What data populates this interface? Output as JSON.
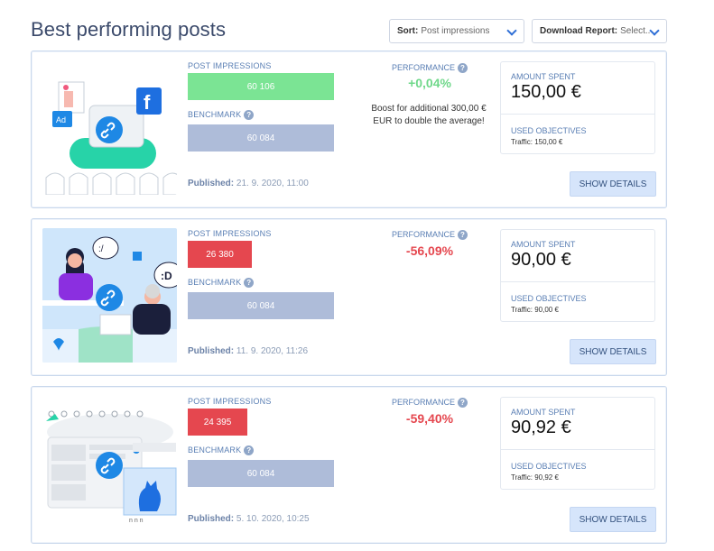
{
  "header": {
    "title": "Best performing posts",
    "sort": {
      "label": "Sort:",
      "value": "Post impressions"
    },
    "report": {
      "label": "Download Report:",
      "value": "Select..."
    }
  },
  "labels": {
    "post_impressions": "POST IMPRESSIONS",
    "benchmark": "BENCHMARK",
    "performance": "PERFORMANCE",
    "amount_spent": "AMOUNT SPENT",
    "used_objectives": "USED OBJECTIVES",
    "published": "Published:",
    "show_details": "SHOW DETAILS",
    "info": "?"
  },
  "colors": {
    "positive_bar": "#7be494",
    "negative_bar": "#e5474f",
    "benchmark_bar": "#aebcd9",
    "accent": "#2f6fd6"
  },
  "posts": [
    {
      "impressions": "60 106",
      "benchmark": "60 084",
      "published": "21. 9. 2020, 11:00",
      "performance": "+0,04%",
      "boost_text": "Boost for additional 300,00 € EUR to double the average!",
      "amount_spent": "150,00 €",
      "traffic": "Traffic: 150,00 €",
      "image": "facebook-ad-illustration"
    },
    {
      "impressions": "26 380",
      "benchmark": "60 084",
      "published": "11. 9. 2020, 11:26",
      "performance": "-56,09%",
      "amount_spent": "90,00 €",
      "traffic": "Traffic: 90,00 €",
      "image": "chat-people-illustration"
    },
    {
      "impressions": "24 395",
      "benchmark": "60 084",
      "published": "5. 10. 2020, 10:25",
      "performance": "-59,40%",
      "amount_spent": "90,92 €",
      "traffic": "Traffic: 90,92 €",
      "image": "calendar-cat-illustration"
    }
  ]
}
